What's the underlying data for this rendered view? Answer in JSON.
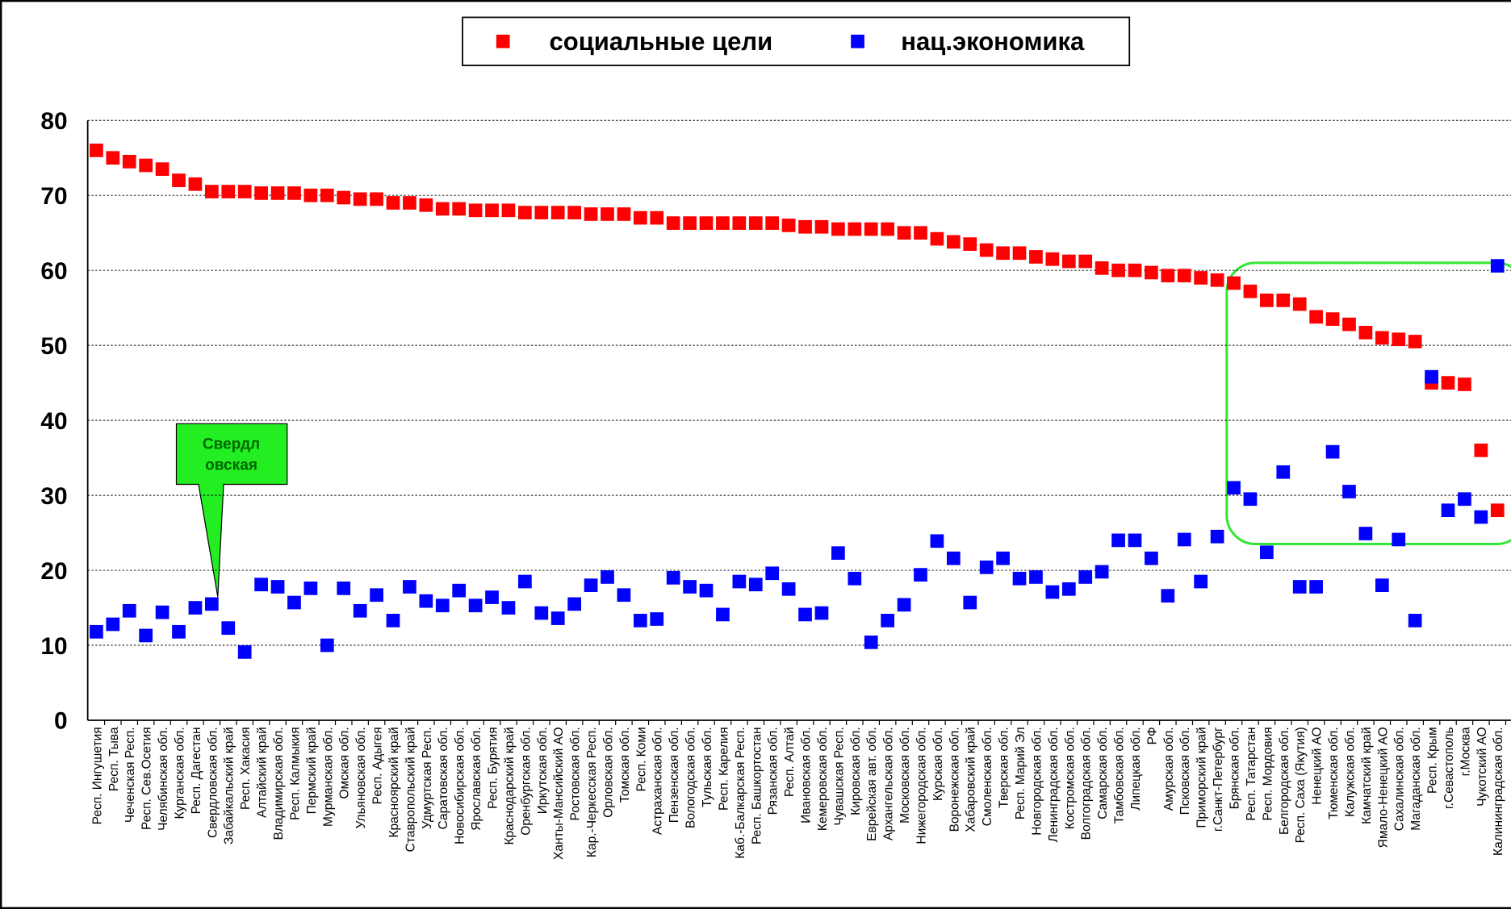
{
  "chart_data": {
    "type": "scatter",
    "categories": [
      "Респ. Ингушетия",
      "Респ. Тыва",
      "Чеченская Респ.",
      "Респ. Сев.Осетия",
      "Челябинская обл.",
      "Курганская обл.",
      "Респ. Дагестан",
      "Свердловская обл.",
      "Забайкальский край",
      "Респ. Хакасия",
      "Алтайский край",
      "Владимирская обл.",
      "Респ. Калмыкия",
      "Пермский край",
      "Мурманская обл.",
      "Омская обл.",
      "Ульяновская обл.",
      "Респ. Адыгея",
      "Красноярский край",
      "Ставропольский край",
      "Удмуртская Респ.",
      "Саратовская обл.",
      "Новосибирская обл.",
      "Ярославская обл.",
      "Респ. Бурятия",
      "Краснодарский край",
      "Оренбургская обл.",
      "Иркутская обл.",
      "Ханты-Мансийский АО",
      "Ростовская обл.",
      "Кар.-Черкесская Респ.",
      "Орловская обл.",
      "Томская обл.",
      "Респ. Коми",
      "Астраханская обл.",
      "Пензенская обл.",
      "Вологодская обл.",
      "Тульская обл.",
      "Респ. Карелия",
      "Каб.-Балкарская Респ.",
      "Респ. Башкортостан",
      "Рязанская обл.",
      "Респ. Алтай",
      "Ивановская обл.",
      "Кемеровская обл.",
      "Чувашская Респ.",
      "Кировская обл.",
      "Еврейская авт. обл.",
      "Архангельская обл.",
      "Московская обл.",
      "Нижегородская обл.",
      "Курская обл.",
      "Воронежская обл.",
      "Хабаровский край",
      "Смоленская обл.",
      "Тверская обл.",
      "Респ. Марий Эл",
      "Новгородская обл.",
      "Ленинградская обл.",
      "Костромская обл.",
      "Волгоградская обл.",
      "Самарская обл.",
      "Тамбовская обл.",
      "Липецкая обл.",
      "РФ",
      "Амурская обл.",
      "Псковская обл.",
      "Приморский край",
      "г.Санкт-Петербург",
      "Брянская обл.",
      "Респ. Татарстан",
      "Респ. Мордовия",
      "Белгородская обл.",
      "Респ. Саха (Якутия)",
      "Ненецкий АО",
      "Тюменская обл.",
      "Калужская обл.",
      "Камчатский край",
      "Ямало-Ненецкий АО",
      "Сахалинская обл.",
      "Магаданская обл.",
      "Респ. Крым",
      "г.Севастополь",
      "г.Москва",
      "Чукотский АО",
      "Калининградская обл."
    ],
    "series": [
      {
        "name": "социальные цели",
        "color": "#ff0000",
        "values": [
          76,
          75,
          74.5,
          74,
          73.5,
          72,
          71.5,
          70.5,
          70.5,
          70.5,
          70.3,
          70.3,
          70.3,
          70,
          70,
          69.7,
          69.5,
          69.5,
          69,
          69,
          68.7,
          68.2,
          68.2,
          68,
          68,
          68,
          67.7,
          67.7,
          67.7,
          67.7,
          67.5,
          67.5,
          67.5,
          67,
          67,
          66.3,
          66.3,
          66.3,
          66.3,
          66.3,
          66.3,
          66.3,
          66,
          65.8,
          65.8,
          65.5,
          65.5,
          65.5,
          65.5,
          65,
          65,
          64.2,
          63.8,
          63.5,
          62.7,
          62.3,
          62.3,
          61.8,
          61.5,
          61.2,
          61.2,
          60.3,
          60,
          60,
          59.7,
          59.3,
          59.3,
          59,
          58.7,
          58.3,
          57.2,
          56,
          56,
          55.5,
          53.8,
          53.5,
          52.8,
          51.7,
          51,
          50.8,
          50.5,
          45,
          45,
          44.8,
          36,
          28
        ]
      },
      {
        "name": "нац.экономика",
        "color": "#0000ff",
        "values": [
          11.8,
          12.8,
          14.6,
          11.3,
          14.4,
          11.8,
          15,
          15.5,
          12.3,
          9.1,
          18.1,
          17.8,
          15.7,
          17.6,
          10,
          17.6,
          14.6,
          16.7,
          13.3,
          17.8,
          15.9,
          15.3,
          17.3,
          15.3,
          16.4,
          15,
          18.5,
          14.3,
          13.6,
          15.5,
          18,
          19.1,
          16.7,
          13.3,
          13.5,
          19,
          17.8,
          17.3,
          14.1,
          18.5,
          18.1,
          19.6,
          17.5,
          14.1,
          14.3,
          22.3,
          18.9,
          10.4,
          13.3,
          15.4,
          19.4,
          23.9,
          21.6,
          15.7,
          20.4,
          21.6,
          18.9,
          19.1,
          17.1,
          17.5,
          19.1,
          19.8,
          24,
          24,
          21.6,
          16.6,
          24.1,
          18.5,
          24.5,
          31,
          29.5,
          22.4,
          33.1,
          17.8,
          17.8,
          35.8,
          30.5,
          24.9,
          18,
          24.1,
          13.3,
          45.8,
          28,
          29.5,
          27.1,
          60.6
        ]
      }
    ],
    "ylim": [
      0,
      80
    ],
    "yticks": [
      0,
      10,
      20,
      30,
      40,
      50,
      60,
      70,
      80
    ],
    "grid": true,
    "annotation": [
      "Свердл",
      "овская"
    ]
  }
}
